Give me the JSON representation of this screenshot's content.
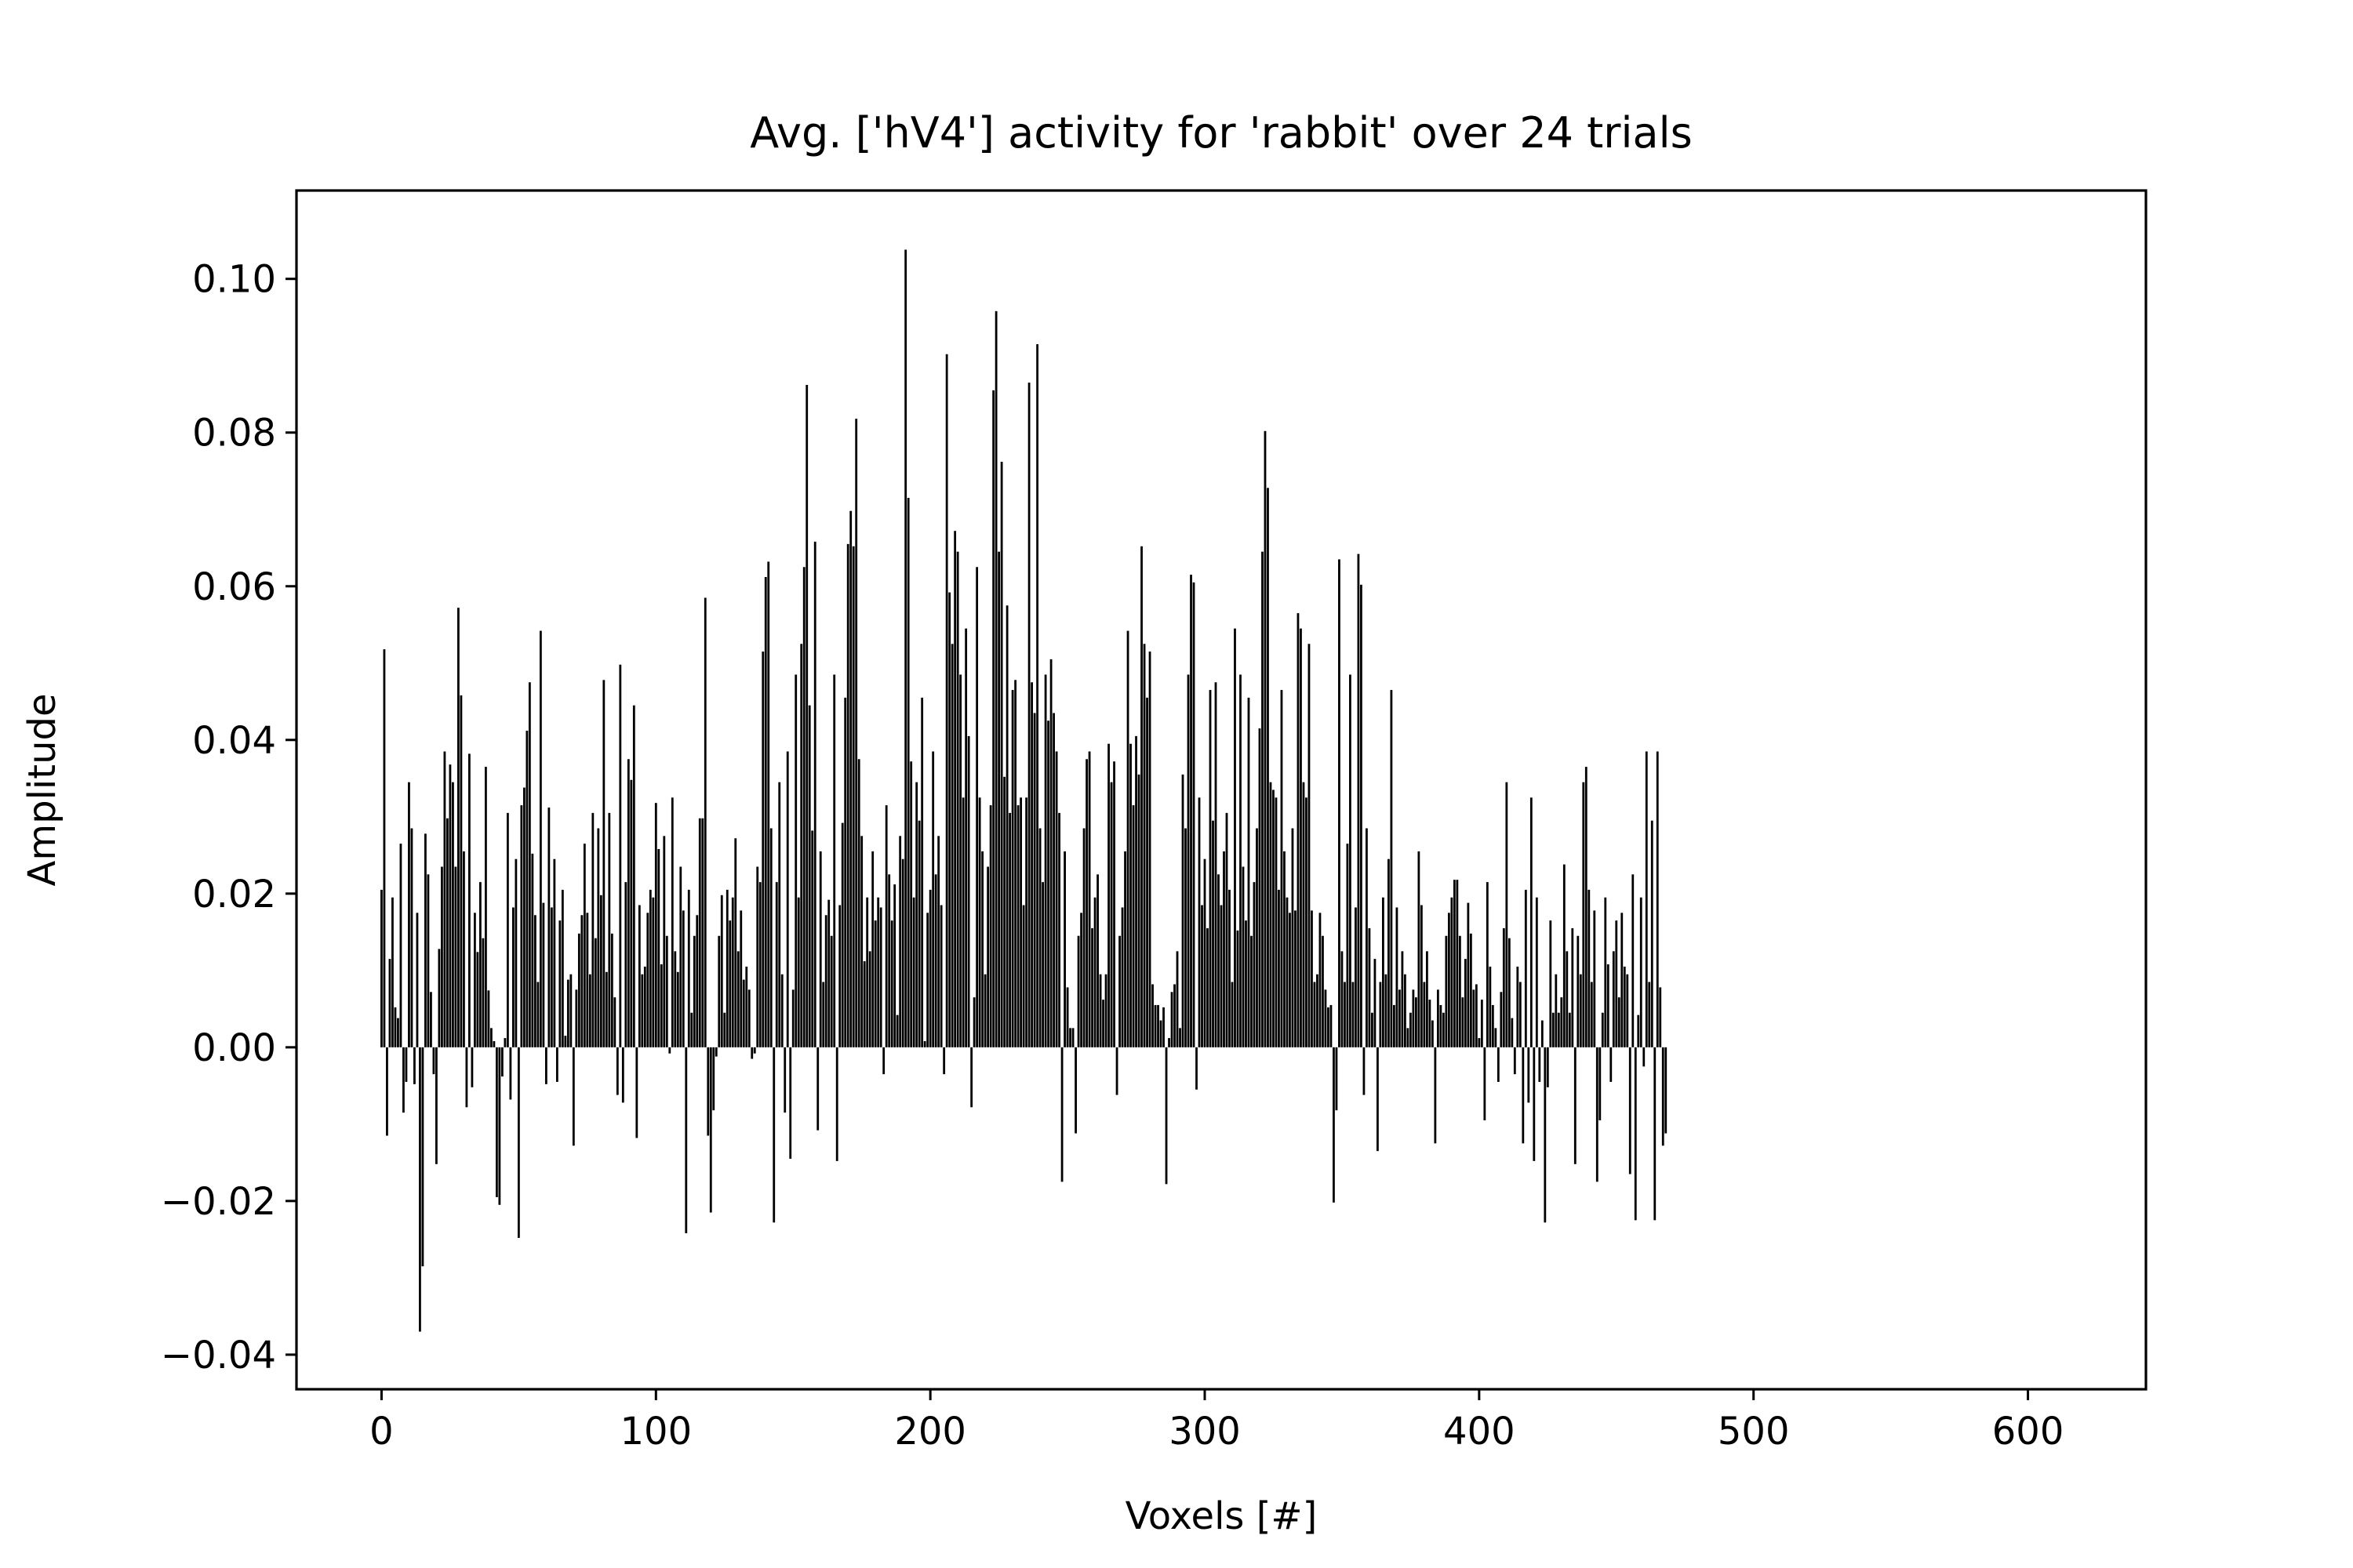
{
  "chart_data": {
    "type": "bar",
    "title": "Avg. ['hV4'] activity for 'rabbit' over 24 trials",
    "xlabel": "Voxels [#]",
    "ylabel": "Amplitude",
    "xlim": [
      -31,
      643
    ],
    "ylim": [
      -0.0445,
      0.1115
    ],
    "x_ticks": [
      0,
      100,
      200,
      300,
      400,
      500,
      600
    ],
    "x_tick_labels": [
      "0",
      "100",
      "200",
      "300",
      "400",
      "500",
      "600"
    ],
    "y_ticks": [
      -0.04,
      -0.02,
      0.0,
      0.02,
      0.04,
      0.06,
      0.08,
      0.1
    ],
    "y_tick_labels": [
      "−0.04",
      "−0.02",
      "0.00",
      "0.02",
      "0.04",
      "0.06",
      "0.08",
      "0.10"
    ],
    "grid": false,
    "legend": "none",
    "bar_color": "#000000",
    "series": [
      {
        "x_start": 0,
        "values": [
          0.0205,
          0.0518,
          -0.0115,
          0.0115,
          0.0195,
          0.0052,
          0.0038,
          0.0265,
          -0.0085,
          -0.0045,
          0.0345,
          0.0285,
          -0.0048,
          0.0175,
          -0.037,
          -0.0285,
          0.0278,
          0.0225,
          0.0072,
          -0.0035,
          -0.0152,
          0.0128,
          0.0235,
          0.0385,
          0.0298,
          0.0368,
          0.0345,
          0.0235,
          0.0572,
          0.0458,
          0.0255,
          -0.0078,
          0.0382,
          -0.0052,
          0.0175,
          0.0124,
          0.0215,
          0.0142,
          0.0365,
          0.0074,
          0.0025,
          0.0008,
          -0.0195,
          -0.0205,
          -0.0038,
          0.0012,
          0.0305,
          -0.0068,
          0.0182,
          0.0245,
          -0.0248,
          0.0315,
          0.0338,
          0.0412,
          0.0475,
          0.0252,
          0.0172,
          0.0085,
          0.0542,
          0.0188,
          -0.0048,
          0.0312,
          0.0182,
          0.0245,
          -0.0045,
          0.0165,
          0.0205,
          0.0015,
          0.0088,
          0.0095,
          -0.0128,
          0.0075,
          0.0148,
          0.0172,
          0.0265,
          0.0175,
          0.0095,
          0.0305,
          0.0142,
          0.0285,
          0.0198,
          0.0478,
          0.0098,
          0.0305,
          0.0148,
          0.0065,
          -0.0062,
          0.0498,
          -0.0072,
          0.0215,
          0.0375,
          0.0348,
          0.0445,
          -0.0118,
          0.0185,
          0.0095,
          0.0105,
          0.0175,
          0.0205,
          0.0195,
          0.0318,
          0.0258,
          0.0108,
          0.0275,
          0.0145,
          -0.0008,
          0.0325,
          0.0125,
          0.0098,
          0.0235,
          0.0178,
          -0.0242,
          0.0205,
          0.0045,
          0.0145,
          0.0172,
          0.0298,
          0.0298,
          0.0585,
          -0.0115,
          -0.0215,
          -0.0082,
          -0.0012,
          0.0145,
          0.0198,
          0.0045,
          0.0205,
          0.0165,
          0.0195,
          0.0272,
          0.0125,
          0.0178,
          0.0088,
          0.0105,
          0.0075,
          -0.0015,
          -0.0008,
          0.0235,
          0.0215,
          0.0515,
          0.0612,
          0.0632,
          0.0285,
          -0.0228,
          0.0215,
          0.0345,
          0.0095,
          -0.0085,
          0.0385,
          -0.0145,
          0.0075,
          0.0485,
          0.0195,
          0.0525,
          0.0625,
          0.0862,
          0.0445,
          0.0282,
          0.0658,
          -0.0108,
          0.0255,
          0.0085,
          0.0172,
          0.0192,
          0.0145,
          0.0485,
          -0.0148,
          0.0185,
          0.0292,
          0.0455,
          0.0655,
          0.0698,
          0.0652,
          0.0818,
          0.0375,
          0.0275,
          0.0112,
          0.0195,
          0.0125,
          0.0255,
          0.0165,
          0.0195,
          0.0182,
          -0.0035,
          0.0315,
          0.0225,
          0.0165,
          0.0212,
          0.0042,
          0.0275,
          0.0245,
          0.1038,
          0.0715,
          0.0372,
          0.0195,
          0.0345,
          0.0295,
          0.0455,
          0.0008,
          0.0175,
          0.0205,
          0.0385,
          0.0225,
          0.0275,
          0.0185,
          -0.0035,
          0.0902,
          0.0592,
          0.0525,
          0.0672,
          0.0645,
          0.0485,
          0.0325,
          0.0545,
          0.0405,
          -0.0078,
          0.0065,
          0.0625,
          0.0325,
          0.0255,
          0.0095,
          0.0235,
          0.0315,
          0.0855,
          0.0958,
          0.0645,
          0.0762,
          0.0352,
          0.0575,
          0.0305,
          0.0465,
          0.0478,
          0.0315,
          0.0325,
          0.0185,
          0.0325,
          0.0865,
          0.0475,
          0.0435,
          0.0915,
          0.0285,
          0.0215,
          0.0485,
          0.0425,
          0.0505,
          0.0435,
          0.0385,
          0.0305,
          -0.0175,
          0.0255,
          0.0078,
          0.0025,
          0.0025,
          -0.0112,
          0.0145,
          0.0175,
          0.0285,
          0.0375,
          0.0385,
          0.0155,
          0.0195,
          0.0225,
          0.0095,
          0.0062,
          0.0095,
          0.0395,
          0.0345,
          0.0372,
          -0.0062,
          0.0145,
          0.0182,
          0.0255,
          0.0542,
          0.0395,
          0.0315,
          0.0405,
          0.0355,
          0.0652,
          0.0525,
          0.0455,
          0.0515,
          0.0082,
          0.0055,
          0.0055,
          0.0035,
          0.0052,
          -0.0178,
          0.0012,
          0.0072,
          0.0082,
          0.0125,
          0.0025,
          0.0355,
          0.0285,
          0.0485,
          0.0615,
          0.0605,
          -0.0055,
          0.0325,
          0.0185,
          0.0245,
          0.0155,
          0.0465,
          0.0295,
          0.0475,
          0.0225,
          0.0185,
          0.0255,
          0.0305,
          0.0205,
          0.0085,
          0.0545,
          0.0152,
          0.0485,
          0.0235,
          0.0165,
          0.0455,
          0.0145,
          0.0215,
          0.0285,
          0.0415,
          0.0645,
          0.0802,
          0.0728,
          0.0345,
          0.0335,
          0.0325,
          0.0205,
          0.0465,
          0.0255,
          0.0195,
          0.0175,
          0.0285,
          0.0178,
          0.0565,
          0.0545,
          0.0345,
          0.0325,
          0.0525,
          0.0178,
          0.0085,
          0.0095,
          0.0175,
          0.0145,
          0.0075,
          0.0052,
          0.0055,
          -0.0202,
          -0.0082,
          0.0635,
          0.0125,
          0.0085,
          0.0265,
          0.0485,
          0.0085,
          0.0182,
          0.0642,
          0.0602,
          -0.0062,
          0.0285,
          0.0155,
          0.0045,
          0.0115,
          -0.0135,
          0.0085,
          0.0195,
          0.0095,
          0.0245,
          0.0465,
          0.0055,
          0.0182,
          0.0075,
          0.0125,
          0.0095,
          0.0025,
          0.0045,
          0.0075,
          0.0065,
          0.0255,
          0.0185,
          0.0085,
          0.0125,
          0.0062,
          0.0035,
          -0.0125,
          0.0075,
          0.0055,
          0.0045,
          0.0145,
          0.0175,
          0.0195,
          0.0218,
          0.0218,
          0.0145,
          0.0065,
          0.0115,
          0.0188,
          0.0148,
          0.0075,
          0.0082,
          0.0012,
          0.0062,
          -0.0095,
          0.0215,
          0.0105,
          0.0055,
          0.0025,
          -0.0045,
          0.0072,
          0.0155,
          0.0345,
          0.0142,
          0.0038,
          -0.0035,
          0.0105,
          0.0085,
          -0.0125,
          0.0205,
          -0.0072,
          0.0325,
          -0.0148,
          0.0195,
          -0.0045,
          0.0035,
          -0.0228,
          -0.0052,
          0.0165,
          0.0045,
          0.0095,
          0.0045,
          0.0065,
          0.0238,
          0.0125,
          0.0045,
          0.0155,
          -0.0152,
          0.0145,
          0.0095,
          0.0345,
          0.0365,
          0.0205,
          0.0085,
          0.0178,
          -0.0175,
          -0.0095,
          0.0045,
          0.0195,
          0.0108,
          -0.0045,
          0.0125,
          0.0165,
          0.0065,
          0.0175,
          0.0105,
          0.0095,
          -0.0165,
          0.0225,
          -0.0225,
          0.0042,
          0.0195,
          -0.0025,
          0.0385,
          0.0085,
          0.0295,
          -0.0225,
          0.0385,
          0.0078,
          -0.0128,
          -0.0112
        ]
      }
    ]
  }
}
